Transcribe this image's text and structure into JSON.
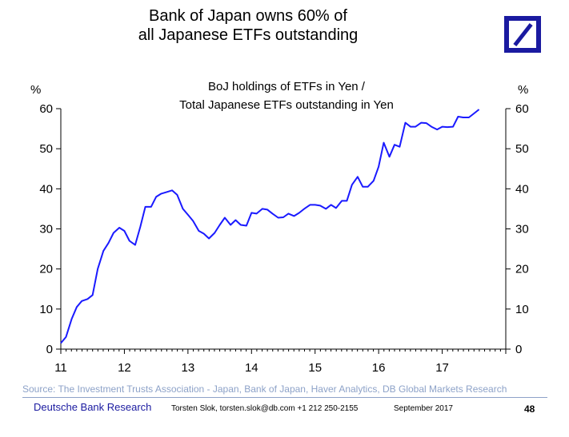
{
  "slide": {
    "title_line1": "Bank of Japan owns 60% of",
    "title_line2": "all Japanese ETFs outstanding",
    "source": "Source: The Investment Trusts Association - Japan, Bank of Japan, Haver Analytics, DB Global Markets Research",
    "footer_brand": "Deutsche Bank Research",
    "footer_author": "Torsten Slok, torsten.slok@db.com  +1 212 250-2155",
    "footer_date": "September  2017",
    "page_number": "48",
    "logo_icon": "deutsche-bank-logo-icon",
    "accent_color": "#1a1aa0"
  },
  "chart_data": {
    "type": "line",
    "subtitle_line1": "BoJ holdings of ETFs in Yen /",
    "subtitle_line2": "Total Japanese ETFs outstanding in Yen",
    "ylabel_left": "%",
    "ylabel_right": "%",
    "xlim": [
      2011,
      2018
    ],
    "ylim": [
      0,
      60
    ],
    "x_ticks": [
      "11",
      "12",
      "13",
      "14",
      "15",
      "16",
      "17"
    ],
    "y_ticks": [
      "0",
      "10",
      "20",
      "30",
      "40",
      "50",
      "60"
    ],
    "grid": false,
    "line_color": "#1a1aff",
    "series": [
      {
        "x": [
          2011.0,
          2011.08,
          2011.17,
          2011.25,
          2011.33,
          2011.42,
          2011.5,
          2011.58,
          2011.67,
          2011.75,
          2011.83,
          2011.92,
          2012.0,
          2012.08,
          2012.17,
          2012.25,
          2012.33,
          2012.42,
          2012.5,
          2012.58,
          2012.67,
          2012.75,
          2012.83,
          2012.92,
          2013.0,
          2013.08,
          2013.17,
          2013.25,
          2013.33,
          2013.42,
          2013.5,
          2013.58,
          2013.67,
          2013.75,
          2013.83,
          2013.92,
          2014.0,
          2014.08,
          2014.17,
          2014.25,
          2014.33,
          2014.42,
          2014.5,
          2014.58,
          2014.67,
          2014.75,
          2014.83,
          2014.92,
          2015.0,
          2015.08,
          2015.17,
          2015.25,
          2015.33,
          2015.42,
          2015.5,
          2015.58,
          2015.67,
          2015.75,
          2015.83,
          2015.92,
          2016.0,
          2016.08,
          2016.17,
          2016.25,
          2016.33,
          2016.42,
          2016.5,
          2016.58,
          2016.67,
          2016.75,
          2016.83,
          2016.92,
          2017.0,
          2017.08,
          2017.17,
          2017.25,
          2017.33,
          2017.42,
          2017.5,
          2017.58
        ],
        "y": [
          1.5,
          3.0,
          7.5,
          10.5,
          12.0,
          12.5,
          13.5,
          20.0,
          24.5,
          26.5,
          29.0,
          30.3,
          29.5,
          27.0,
          26.0,
          30.5,
          35.5,
          35.5,
          38.0,
          38.8,
          39.2,
          39.6,
          38.5,
          35.0,
          33.5,
          32.0,
          29.5,
          28.8,
          27.6,
          29.0,
          31.0,
          32.8,
          31.0,
          32.2,
          31.0,
          30.8,
          34.0,
          33.8,
          35.0,
          34.8,
          33.8,
          32.8,
          32.9,
          33.8,
          33.2,
          34.0,
          35.0,
          36.0,
          36.0,
          35.8,
          35.0,
          36.0,
          35.2,
          37.0,
          37.0,
          41.0,
          43.0,
          40.5,
          40.5,
          42.0,
          45.5,
          51.5,
          48.0,
          51.0,
          50.5,
          56.5,
          55.5,
          55.5,
          56.5,
          56.4,
          55.5,
          54.8,
          55.5,
          55.4,
          55.5,
          58.0,
          57.8,
          57.8,
          58.8,
          59.8
        ]
      }
    ]
  }
}
